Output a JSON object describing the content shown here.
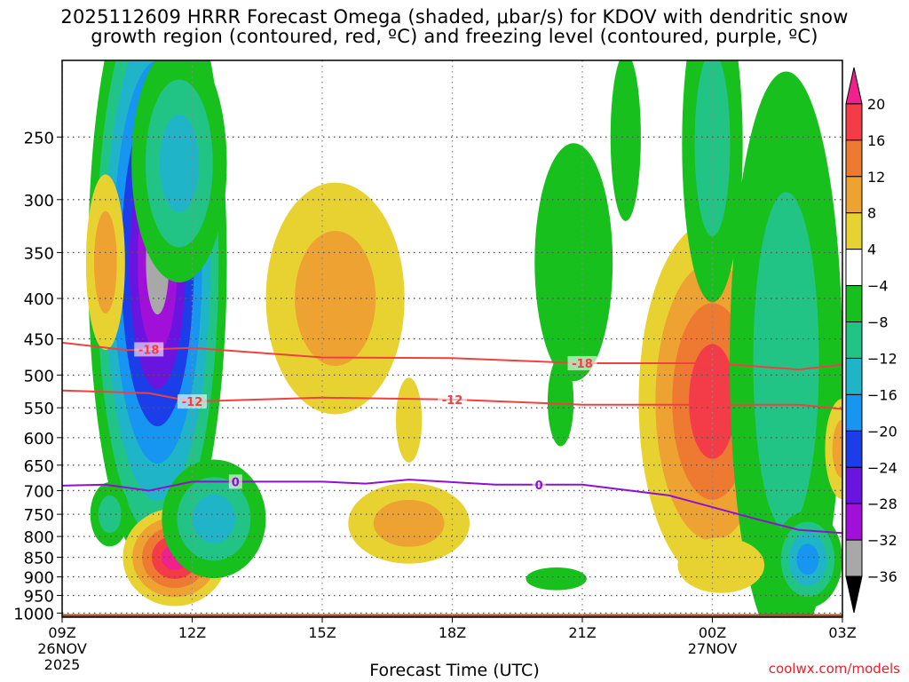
{
  "title": {
    "line1": "2025112609 HRRR Forecast Omega (shaded, μbar/s) for KDOV with dendritic snow",
    "line2": "growth region (contoured, red, ºC) and freezing level (contoured, purple, ºC)"
  },
  "credit": "coolwx.com/models",
  "chart_data": {
    "type": "heatmap",
    "xlabel": "Forecast Time (UTC)",
    "x_ticks": [
      {
        "hour": 0,
        "label": "09Z",
        "sub": [
          "26NOV",
          "2025"
        ]
      },
      {
        "hour": 3,
        "label": "12Z",
        "sub": []
      },
      {
        "hour": 6,
        "label": "15Z",
        "sub": []
      },
      {
        "hour": 9,
        "label": "18Z",
        "sub": []
      },
      {
        "hour": 12,
        "label": "21Z",
        "sub": []
      },
      {
        "hour": 15,
        "label": "00Z",
        "sub": [
          "27NOV"
        ]
      },
      {
        "hour": 18,
        "label": "03Z",
        "sub": []
      }
    ],
    "xlim": [
      0,
      18
    ],
    "y_levels": [
      250,
      300,
      350,
      400,
      450,
      500,
      550,
      600,
      650,
      700,
      750,
      800,
      850,
      900,
      950,
      1000
    ],
    "ylim": [
      200,
      1000
    ],
    "colorbar": {
      "labels": [
        "20",
        "16",
        "12",
        "8",
        "4",
        "−4",
        "−8",
        "−12",
        "−16",
        "−20",
        "−24",
        "−28",
        "−32",
        "−36"
      ],
      "bins": [
        {
          "range": ">20",
          "color": "#f0208c"
        },
        {
          "range": "16 to 20",
          "color": "#f43c48"
        },
        {
          "range": "12 to 16",
          "color": "#ee7a32"
        },
        {
          "range": "8 to 12",
          "color": "#eea232"
        },
        {
          "range": "4 to 8",
          "color": "#e8d232"
        },
        {
          "range": "-4 to 4",
          "color": "#ffffff"
        },
        {
          "range": "-8 to -4",
          "color": "#18c01e"
        },
        {
          "range": "-12 to -8",
          "color": "#22c486"
        },
        {
          "range": "-16 to -12",
          "color": "#20b4c8"
        },
        {
          "range": "-20 to -16",
          "color": "#1696f0"
        },
        {
          "range": "-24 to -20",
          "color": "#1c3ee8"
        },
        {
          "range": "-28 to -24",
          "color": "#6a14e0"
        },
        {
          "range": "-32 to -28",
          "color": "#a010d8"
        },
        {
          "range": "-36 to -32",
          "color": "#a8a8a8"
        },
        {
          "range": "<-36",
          "color": "#000000"
        }
      ]
    },
    "blobs": [
      {
        "cx": 2.2,
        "p": 360,
        "rx": 1.6,
        "rp": 260,
        "levels": [
          "#18c01e",
          "#22c486",
          "#20b4c8",
          "#1696f0",
          "#1c3ee8",
          "#6a14e0",
          "#a010d8",
          "#a8a8a8"
        ]
      },
      {
        "cx": 2.7,
        "p": 270,
        "rx": 1.1,
        "rp": 90,
        "levels": [
          "#18c01e",
          "#22c486",
          "#20b4c8"
        ]
      },
      {
        "cx": 1.0,
        "p": 360,
        "rx": 0.45,
        "rp": 90,
        "levels": [
          "#e8d232",
          "#eea232"
        ]
      },
      {
        "cx": 2.6,
        "p": 850,
        "rx": 1.2,
        "rp": 120,
        "levels": [
          "#e8d232",
          "#eea232",
          "#ee7a32",
          "#f43c48",
          "#f0208c"
        ]
      },
      {
        "cx": 3.5,
        "p": 760,
        "rx": 1.2,
        "rp": 130,
        "levels": [
          "#18c01e",
          "#22c486",
          "#20b4c8"
        ]
      },
      {
        "cx": 1.1,
        "p": 750,
        "rx": 0.45,
        "rp": 70,
        "levels": [
          "#18c01e",
          "#22c486"
        ]
      },
      {
        "cx": 6.3,
        "p": 400,
        "rx": 1.6,
        "rp": 130,
        "levels": [
          "#e8d232",
          "#eea232"
        ]
      },
      {
        "cx": 8.0,
        "p": 770,
        "rx": 1.4,
        "rp": 90,
        "levels": [
          "#e8d232",
          "#eea232"
        ]
      },
      {
        "cx": 8.0,
        "p": 570,
        "rx": 0.3,
        "rp": 70,
        "levels": [
          "#e8d232"
        ]
      },
      {
        "cx": 11.8,
        "p": 360,
        "rx": 0.9,
        "rp": 120,
        "levels": [
          "#18c01e"
        ]
      },
      {
        "cx": 11.5,
        "p": 540,
        "rx": 0.3,
        "rp": 70,
        "levels": [
          "#18c01e"
        ]
      },
      {
        "cx": 11.4,
        "p": 905,
        "rx": 0.7,
        "rp": 30,
        "levels": [
          "#18c01e"
        ]
      },
      {
        "cx": 13.0,
        "p": 250,
        "rx": 0.35,
        "rp": 60,
        "levels": [
          "#18c01e"
        ]
      },
      {
        "cx": 15.0,
        "p": 540,
        "rx": 1.7,
        "rp": 260,
        "levels": [
          "#e8d232",
          "#eea232",
          "#ee7a32",
          "#f43c48"
        ]
      },
      {
        "cx": 15.0,
        "p": 255,
        "rx": 0.7,
        "rp": 110,
        "levels": [
          "#18c01e",
          "#22c486"
        ]
      },
      {
        "cx": 16.7,
        "p": 480,
        "rx": 1.3,
        "rp": 330,
        "levels": [
          "#18c01e",
          "#22c486"
        ]
      },
      {
        "cx": 17.2,
        "p": 855,
        "rx": 0.8,
        "rp": 120,
        "levels": [
          "#18c01e",
          "#22c486",
          "#20b4c8",
          "#1696f0"
        ]
      },
      {
        "cx": 15.2,
        "p": 870,
        "rx": 1.0,
        "rp": 70,
        "levels": [
          "#e8d232"
        ]
      },
      {
        "cx": 18.0,
        "p": 620,
        "rx": 0.4,
        "rp": 90,
        "levels": [
          "#e8d232",
          "#eea232"
        ]
      }
    ],
    "contours": [
      {
        "name": "dgz-top",
        "label": "-18",
        "color": "#f04040",
        "points": [
          [
            0,
            455
          ],
          [
            1.5,
            465
          ],
          [
            3,
            462
          ],
          [
            6,
            475
          ],
          [
            9,
            476
          ],
          [
            12,
            483
          ],
          [
            15,
            483
          ],
          [
            17,
            492
          ],
          [
            18,
            485
          ]
        ],
        "label_at": [
          2,
          12
        ]
      },
      {
        "name": "dgz-bottom",
        "label": "-12",
        "color": "#f04040",
        "points": [
          [
            0,
            523
          ],
          [
            2,
            527
          ],
          [
            3,
            540
          ],
          [
            6,
            534
          ],
          [
            9,
            537
          ],
          [
            12,
            545
          ],
          [
            15,
            545
          ],
          [
            17,
            545
          ],
          [
            18,
            552
          ]
        ],
        "label_at": [
          3,
          9
        ]
      },
      {
        "name": "freezing-level",
        "label": "0",
        "color": "#9010d0",
        "points": [
          [
            0,
            690
          ],
          [
            1,
            688
          ],
          [
            2,
            700
          ],
          [
            3,
            682
          ],
          [
            5,
            682
          ],
          [
            6,
            682
          ],
          [
            7,
            686
          ],
          [
            8,
            678
          ],
          [
            10,
            688
          ],
          [
            12,
            688
          ],
          [
            14,
            710
          ],
          [
            16,
            760
          ],
          [
            17,
            785
          ],
          [
            18,
            792
          ]
        ],
        "label_at": [
          4,
          11
        ]
      }
    ]
  }
}
